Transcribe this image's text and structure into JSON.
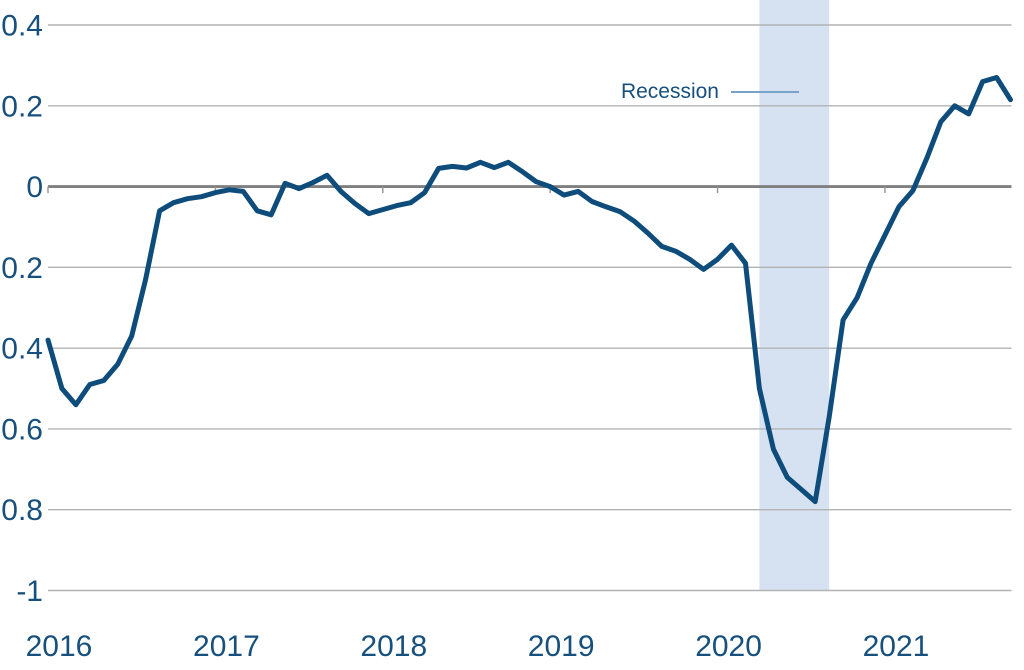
{
  "page": {
    "background": "#ffffff"
  },
  "chart_data": {
    "type": "line",
    "frequency": "monthly",
    "x_start": "2016-01",
    "x_end": "2021-10",
    "months": [
      "2016-01",
      "2016-02",
      "2016-03",
      "2016-04",
      "2016-05",
      "2016-06",
      "2016-07",
      "2016-08",
      "2016-09",
      "2016-10",
      "2016-11",
      "2016-12",
      "2017-01",
      "2017-02",
      "2017-03",
      "2017-04",
      "2017-05",
      "2017-06",
      "2017-07",
      "2017-08",
      "2017-09",
      "2017-10",
      "2017-11",
      "2017-12",
      "2018-01",
      "2018-02",
      "2018-03",
      "2018-04",
      "2018-05",
      "2018-06",
      "2018-07",
      "2018-08",
      "2018-09",
      "2018-10",
      "2018-11",
      "2018-12",
      "2019-01",
      "2019-02",
      "2019-03",
      "2019-04",
      "2019-05",
      "2019-06",
      "2019-07",
      "2019-08",
      "2019-09",
      "2019-10",
      "2019-11",
      "2019-12",
      "2020-01",
      "2020-02",
      "2020-03",
      "2020-04",
      "2020-05",
      "2020-06",
      "2020-07",
      "2020-08",
      "2020-09",
      "2020-10",
      "2020-11",
      "2020-12",
      "2021-01",
      "2021-02",
      "2021-03",
      "2021-04",
      "2021-05",
      "2021-06",
      "2021-07",
      "2021-08",
      "2021-09",
      "2021-10"
    ],
    "values": [
      -0.38,
      -0.5,
      -0.54,
      -0.49,
      -0.48,
      -0.44,
      -0.37,
      -0.23,
      -0.06,
      -0.04,
      -0.03,
      -0.025,
      -0.015,
      -0.008,
      -0.012,
      -0.06,
      -0.07,
      0.008,
      -0.005,
      0.01,
      0.028,
      -0.012,
      -0.042,
      -0.067,
      -0.057,
      -0.047,
      -0.04,
      -0.015,
      0.045,
      0.05,
      0.046,
      0.06,
      0.047,
      0.06,
      0.037,
      0.012,
      0.0,
      -0.021,
      -0.012,
      -0.037,
      -0.05,
      -0.062,
      -0.085,
      -0.115,
      -0.148,
      -0.16,
      -0.18,
      -0.205,
      -0.18,
      -0.145,
      -0.19,
      -0.5,
      -0.65,
      -0.72,
      -0.75,
      -0.78,
      -0.57,
      -0.33,
      -0.275,
      -0.19,
      -0.12,
      -0.05,
      -0.01,
      0.07,
      0.16,
      0.2,
      0.18,
      0.26,
      0.27,
      0.215
    ],
    "ylim": [
      -1,
      0.4
    ],
    "yticks": [
      0.4,
      0.2,
      0,
      -0.2,
      -0.4,
      -0.6,
      -0.8,
      -1
    ],
    "ytick_labels": [
      "0.4",
      "0.2",
      "0",
      "-0.2",
      "-0.4",
      "-0.6",
      "-0.8",
      "-1"
    ],
    "xtick_labels": [
      "2016",
      "2017",
      "2018",
      "2019",
      "2020",
      "2021"
    ],
    "grid": "horizontal",
    "legend": "none",
    "recession_band": {
      "start": "2020-04",
      "end": "2020-09",
      "label": "Recession"
    },
    "colors": {
      "line": "#0e4c7b",
      "band": "#d6e2f1",
      "grid": "#b3b3b3",
      "zero_line": "#7f7f7f",
      "tick": "#999999",
      "labels": "#17507c",
      "annotation_text": "#17507c",
      "leader_line": "#78a2c8",
      "background": "#ffffff"
    }
  }
}
